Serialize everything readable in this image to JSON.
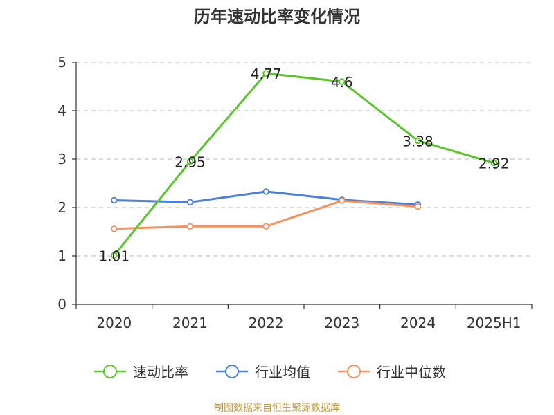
{
  "chart_data": {
    "type": "line",
    "title": "历年速动比率变化情况",
    "categories": [
      "2020",
      "2021",
      "2022",
      "2023",
      "2024",
      "2025H1"
    ],
    "ylim": [
      0,
      5
    ],
    "yticks": [
      "0",
      "1",
      "2",
      "3",
      "4",
      "5"
    ],
    "grid": "horizontal-dashed",
    "legend_position": "bottom",
    "series": [
      {
        "name": "速动比率",
        "color": "#5bc52c",
        "values": [
          1.01,
          2.95,
          4.77,
          4.6,
          3.38,
          2.92
        ],
        "labels": [
          "1.01",
          "2.95",
          "4.77",
          "4.6",
          "3.38",
          "2.92"
        ],
        "show_labels": true
      },
      {
        "name": "行业均值",
        "color": "#4a7fdc",
        "values": [
          2.15,
          2.11,
          2.33,
          2.16,
          2.06,
          null
        ],
        "show_labels": false
      },
      {
        "name": "行业中位数",
        "color": "#f5925e",
        "values": [
          1.56,
          1.61,
          1.61,
          2.14,
          2.02,
          null
        ],
        "show_labels": false
      }
    ]
  },
  "source": "制图数据来自恒生聚源数据库"
}
